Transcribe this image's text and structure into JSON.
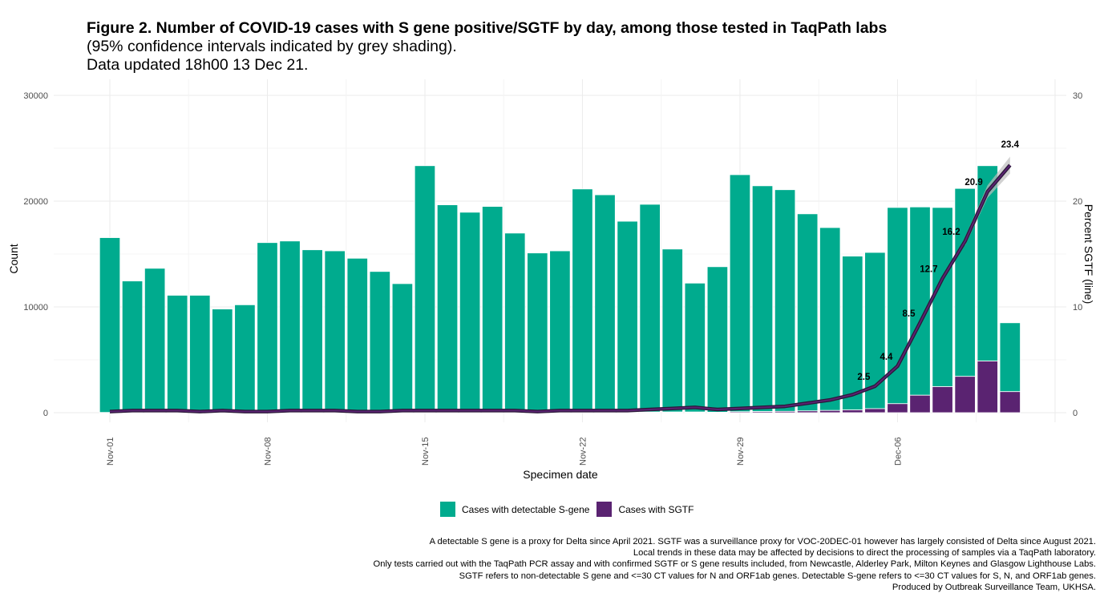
{
  "header": {
    "title_bold": "Figure 2. Number of COVID-19 cases with S gene positive/SGTF by day, among those tested in TaqPath labs",
    "subtitle1": "(95% confidence intervals indicated by grey shading).",
    "subtitle2": "Data updated 18h00 13 Dec 21."
  },
  "chart_data": {
    "type": "bar",
    "subtype": "stacked bar with line on secondary axis",
    "xlabel": "Specimen date",
    "ylabel": "Count",
    "y2label": "Percent SGTF (line)",
    "ylim": [
      0,
      30000
    ],
    "y2lim": [
      0,
      30
    ],
    "yticks": [
      "0",
      "10000",
      "20000",
      "30000"
    ],
    "y2ticks": [
      "0",
      "10",
      "20",
      "30"
    ],
    "xticks": [
      {
        "label": "Nov-01",
        "index": 0
      },
      {
        "label": "Nov-08",
        "index": 7
      },
      {
        "label": "Nov-15",
        "index": 14
      },
      {
        "label": "Nov-22",
        "index": 21
      },
      {
        "label": "Nov-29",
        "index": 28
      },
      {
        "label": "Dec-06",
        "index": 35
      }
    ],
    "grid": true,
    "legend_position": "bottom",
    "colors": {
      "sgene": "#00AB8E",
      "sgtf": "#5A2371",
      "line": "#2A1838",
      "band": "#BDBDBD"
    },
    "categories": [
      "Nov-01",
      "Nov-02",
      "Nov-03",
      "Nov-04",
      "Nov-05",
      "Nov-06",
      "Nov-07",
      "Nov-08",
      "Nov-09",
      "Nov-10",
      "Nov-11",
      "Nov-12",
      "Nov-13",
      "Nov-14",
      "Nov-15",
      "Nov-16",
      "Nov-17",
      "Nov-18",
      "Nov-19",
      "Nov-20",
      "Nov-21",
      "Nov-22",
      "Nov-23",
      "Nov-24",
      "Nov-25",
      "Nov-26",
      "Nov-27",
      "Nov-28",
      "Nov-29",
      "Nov-30",
      "Dec-01",
      "Dec-02",
      "Dec-03",
      "Dec-04",
      "Dec-05",
      "Dec-06",
      "Dec-07",
      "Dec-08",
      "Dec-09",
      "Dec-10",
      "Dec-11"
    ],
    "totals": [
      16550,
      12450,
      13650,
      11100,
      11100,
      9800,
      10200,
      16080,
      16230,
      15400,
      15300,
      14600,
      13350,
      12200,
      23350,
      19650,
      18950,
      19500,
      16980,
      15100,
      15300,
      21150,
      20600,
      18100,
      19700,
      15470,
      12250,
      13800,
      22500,
      21450,
      21080,
      18800,
      17500,
      14800,
      15150,
      19400,
      19450,
      19400,
      21200,
      23350,
      8500
    ],
    "series": [
      {
        "name": "Cases with detectable S-gene",
        "role": "stacked-bar"
      },
      {
        "name": "Cases with SGTF",
        "role": "stacked-bar",
        "values": [
          17,
          25,
          27,
          22,
          11,
          20,
          10,
          16,
          32,
          31,
          31,
          15,
          13,
          24,
          47,
          39,
          38,
          39,
          34,
          15,
          31,
          42,
          41,
          36,
          59,
          62,
          61,
          41,
          90,
          107,
          126,
          169,
          210,
          260,
          380,
          850,
          1650,
          2460,
          3430,
          4880,
          1990
        ]
      },
      {
        "name": "Percent SGTF",
        "role": "line-secondary-axis",
        "values": [
          0.1,
          0.2,
          0.2,
          0.2,
          0.1,
          0.2,
          0.1,
          0.1,
          0.2,
          0.2,
          0.2,
          0.1,
          0.1,
          0.2,
          0.2,
          0.2,
          0.2,
          0.2,
          0.2,
          0.1,
          0.2,
          0.2,
          0.2,
          0.2,
          0.3,
          0.4,
          0.5,
          0.3,
          0.4,
          0.5,
          0.6,
          0.9,
          1.2,
          1.7,
          2.5,
          4.4,
          8.5,
          12.7,
          16.2,
          20.9,
          23.4
        ],
        "ci_half_width_last3": [
          0.4,
          0.6,
          0.8
        ]
      }
    ],
    "data_labels": [
      {
        "index": 34,
        "text": "2.5"
      },
      {
        "index": 35,
        "text": "4.4"
      },
      {
        "index": 36,
        "text": "8.5"
      },
      {
        "index": 37,
        "text": "12.7"
      },
      {
        "index": 38,
        "text": "16.2"
      },
      {
        "index": 39,
        "text": "20.9"
      },
      {
        "index": 40,
        "text": "23.4"
      }
    ]
  },
  "legend": {
    "sgene_label": "Cases with detectable S-gene",
    "sgtf_label": "Cases with SGTF"
  },
  "notes": [
    "A detectable S gene is a proxy for Delta since April 2021. SGTF was a surveillance proxy for VOC-20DEC-01 however has largely consisted of Delta since August 2021.",
    "Local trends in these data may be affected by decisions to direct the processing of samples via a TaqPath laboratory.",
    "Only tests carried out with the TaqPath PCR assay and with confirmed SGTF or S gene results included, from Newcastle, Alderley Park, Milton Keynes and Glasgow Lighthouse Labs.",
    "SGTF refers to non-detectable S gene and <=30 CT values for N and ORF1ab genes. Detectable S-gene refers to <=30 CT values for S, N, and ORF1ab genes.",
    "Produced by Outbreak Surveillance Team, UKHSA."
  ]
}
